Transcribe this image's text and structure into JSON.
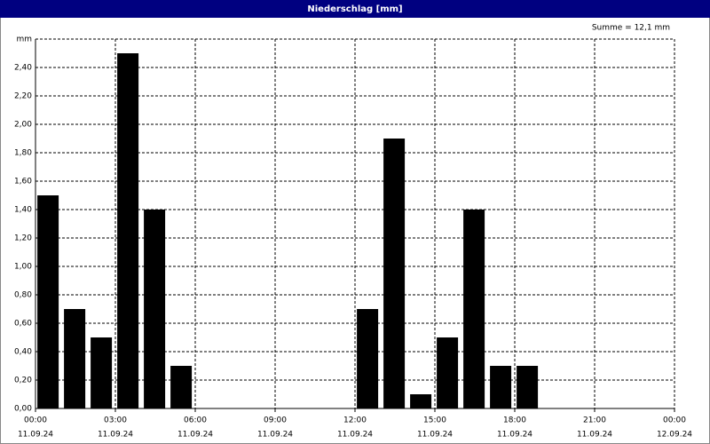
{
  "chart_data": {
    "type": "bar",
    "title": "Niederschlag [mm]",
    "annotation": "Summe = 12,1 mm",
    "x": [
      0,
      1,
      2,
      3,
      4,
      5,
      6,
      7,
      8,
      9,
      10,
      11,
      12,
      13,
      14,
      15,
      16,
      17,
      18,
      19,
      20,
      21,
      22,
      23
    ],
    "values": [
      1.5,
      0.7,
      0.5,
      2.5,
      1.4,
      0.3,
      0,
      0,
      0,
      0,
      0,
      0,
      0.7,
      1.9,
      0.1,
      0.5,
      1.4,
      0.3,
      0.3,
      0,
      0,
      0,
      0,
      0
    ],
    "color": "#000000",
    "xlim": [
      0,
      24
    ],
    "xticks": [
      {
        "value": 0,
        "label": "00:00",
        "date": "11.09.24"
      },
      {
        "value": 3,
        "label": "03:00",
        "date": "11.09.24"
      },
      {
        "value": 6,
        "label": "06:00",
        "date": "11.09.24"
      },
      {
        "value": 9,
        "label": "09:00",
        "date": "11.09.24"
      },
      {
        "value": 12,
        "label": "12:00",
        "date": "11.09.24"
      },
      {
        "value": 15,
        "label": "15:00",
        "date": "11.09.24"
      },
      {
        "value": 18,
        "label": "18:00",
        "date": "11.09.24"
      },
      {
        "value": 21,
        "label": "21:00",
        "date": "11.09.24"
      },
      {
        "value": 24,
        "label": "00:00",
        "date": "12.09.24"
      }
    ],
    "ylim": [
      0,
      2.6
    ],
    "yticks": [
      {
        "value": 0,
        "label": "0,00"
      },
      {
        "value": 0.2,
        "label": "0,20"
      },
      {
        "value": 0.4,
        "label": "0,40"
      },
      {
        "value": 0.6,
        "label": "0,60"
      },
      {
        "value": 0.8,
        "label": "0,80"
      },
      {
        "value": 1,
        "label": "1,00"
      },
      {
        "value": 1.2,
        "label": "1,20"
      },
      {
        "value": 1.4,
        "label": "1,40"
      },
      {
        "value": 1.6,
        "label": "1,60"
      },
      {
        "value": 1.8,
        "label": "1,80"
      },
      {
        "value": 2,
        "label": "2,00"
      },
      {
        "value": 2.2,
        "label": "2,20"
      },
      {
        "value": 2.4,
        "label": "2,40"
      },
      {
        "value": 2.6,
        "label": "mm"
      }
    ],
    "grid": true
  }
}
